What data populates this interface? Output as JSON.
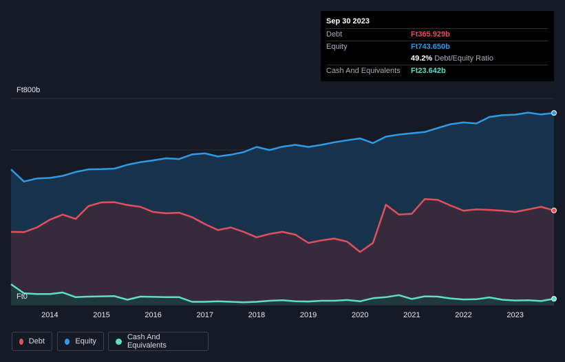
{
  "tooltip": {
    "date": "Sep 30 2023",
    "debt_label": "Debt",
    "debt_value": "Ft365.929b",
    "equity_label": "Equity",
    "equity_value": "Ft743.650b",
    "ratio_value": "49.2%",
    "ratio_label": "Debt/Equity Ratio",
    "cash_label": "Cash And Equivalents",
    "cash_value": "Ft23.642b"
  },
  "legend": {
    "debt": "Debt",
    "equity": "Equity",
    "cash": "Cash And Equivalents"
  },
  "colors": {
    "debt": "#e0505f",
    "equity": "#2f9be6",
    "cash": "#5fe0c6",
    "background": "#151b26"
  },
  "chart_data": {
    "type": "area",
    "y_top_label": "Ft800b",
    "y_bottom_label": "Ft0",
    "ylim": [
      0,
      800
    ],
    "xlim": [
      2013.25,
      2023.75
    ],
    "x_ticks": [
      "2014",
      "2015",
      "2016",
      "2017",
      "2018",
      "2019",
      "2020",
      "2021",
      "2022",
      "2023"
    ],
    "grid": true,
    "legend_position": "bottom-left",
    "x": [
      2013.25,
      2013.5,
      2013.75,
      2014,
      2014.25,
      2014.5,
      2014.75,
      2015,
      2015.25,
      2015.5,
      2015.75,
      2016,
      2016.25,
      2016.5,
      2016.75,
      2017,
      2017.25,
      2017.5,
      2017.75,
      2018,
      2018.25,
      2018.5,
      2018.75,
      2019,
      2019.25,
      2019.5,
      2019.75,
      2020,
      2020.25,
      2020.5,
      2020.75,
      2021,
      2021.25,
      2021.5,
      2021.75,
      2022,
      2022.25,
      2022.5,
      2022.75,
      2023,
      2023.25,
      2023.5,
      2023.75
    ],
    "series": [
      {
        "name": "Equity",
        "values": [
          525,
          478,
          490,
          492,
          500,
          515,
          525,
          526,
          528,
          543,
          553,
          560,
          568,
          565,
          583,
          587,
          575,
          582,
          592,
          612,
          600,
          613,
          620,
          612,
          620,
          630,
          638,
          645,
          627,
          652,
          660,
          665,
          670,
          685,
          700,
          707,
          703,
          728,
          735,
          737,
          745,
          738,
          743.65
        ]
      },
      {
        "name": "Debt",
        "values": [
          283,
          282,
          300,
          330,
          350,
          333,
          383,
          397,
          398,
          387,
          380,
          360,
          355,
          357,
          340,
          313,
          290,
          300,
          283,
          262,
          275,
          283,
          272,
          240,
          250,
          257,
          245,
          205,
          240,
          388,
          350,
          353,
          410,
          407,
          385,
          365,
          370,
          368,
          365,
          360,
          370,
          380,
          365.929
        ]
      },
      {
        "name": "Cash And Equivalents",
        "values": [
          80,
          45,
          42,
          42,
          48,
          30,
          32,
          33,
          34,
          20,
          32,
          31,
          30,
          30,
          12,
          12,
          14,
          12,
          10,
          12,
          16,
          18,
          14,
          13,
          16,
          16,
          19,
          14,
          26,
          30,
          38,
          23,
          33,
          32,
          25,
          21,
          22,
          29,
          20,
          17,
          18,
          15,
          23.642
        ]
      }
    ]
  }
}
